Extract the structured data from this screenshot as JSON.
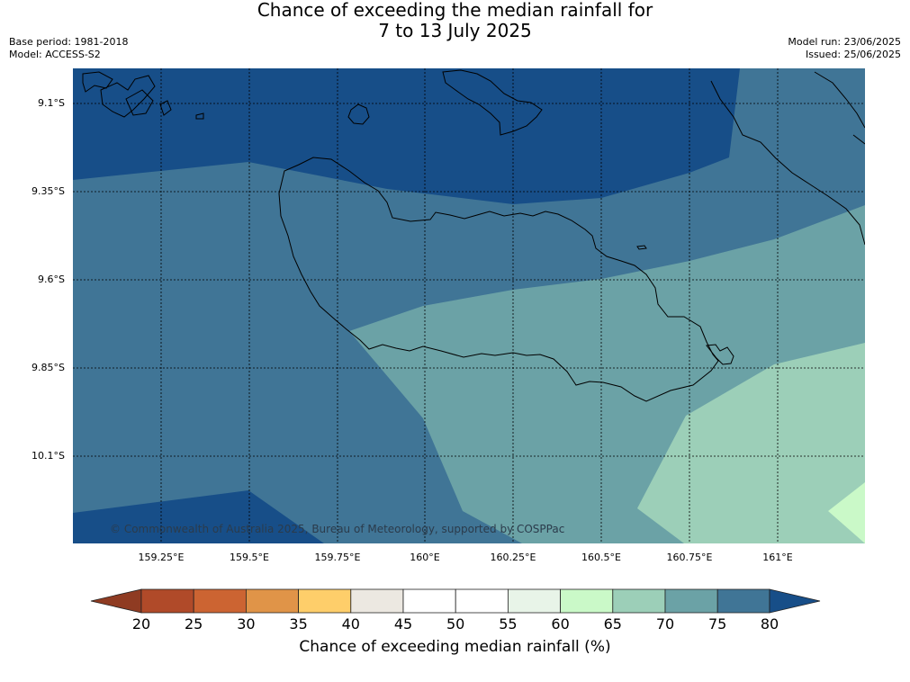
{
  "title": {
    "line1": "Chance of exceeding the median rainfall for",
    "line2": "7 to 13 July 2025"
  },
  "meta_left": {
    "base_period": "Base period: 1981-2018",
    "model": "Model: ACCESS-S2"
  },
  "meta_right": {
    "model_run": "Model run: 23/06/2025",
    "issued": "Issued: 25/06/2025"
  },
  "map": {
    "lat_labels": [
      "9.1°S",
      "9.35°S",
      "9.6°S",
      "9.85°S",
      "10.1°S"
    ],
    "lon_labels": [
      "159.25°E",
      "159.5°E",
      "159.75°E",
      "160°E",
      "160.25°E",
      "160.5°E",
      "160.75°E",
      "161°E"
    ],
    "copyright": "© Commonwealth of Australia 2025, Bureau of Meteorology, supported by COSPPac"
  },
  "colorbar": {
    "ticks": [
      "20",
      "25",
      "30",
      "35",
      "40",
      "45",
      "50",
      "55",
      "60",
      "65",
      "70",
      "75",
      "80"
    ],
    "title": "Chance of exceeding median rainfall (%)",
    "colors": [
      "#b04a29",
      "#cc6432",
      "#e09448",
      "#fece6a",
      "#ece8e1",
      "#ffffff",
      "#ffffff",
      "#e8f4e8",
      "#caf9c8",
      "#9ccfb8",
      "#6ba2a6",
      "#407596"
    ],
    "under_color": "#8f3b22",
    "over_color": "#174e88"
  }
}
